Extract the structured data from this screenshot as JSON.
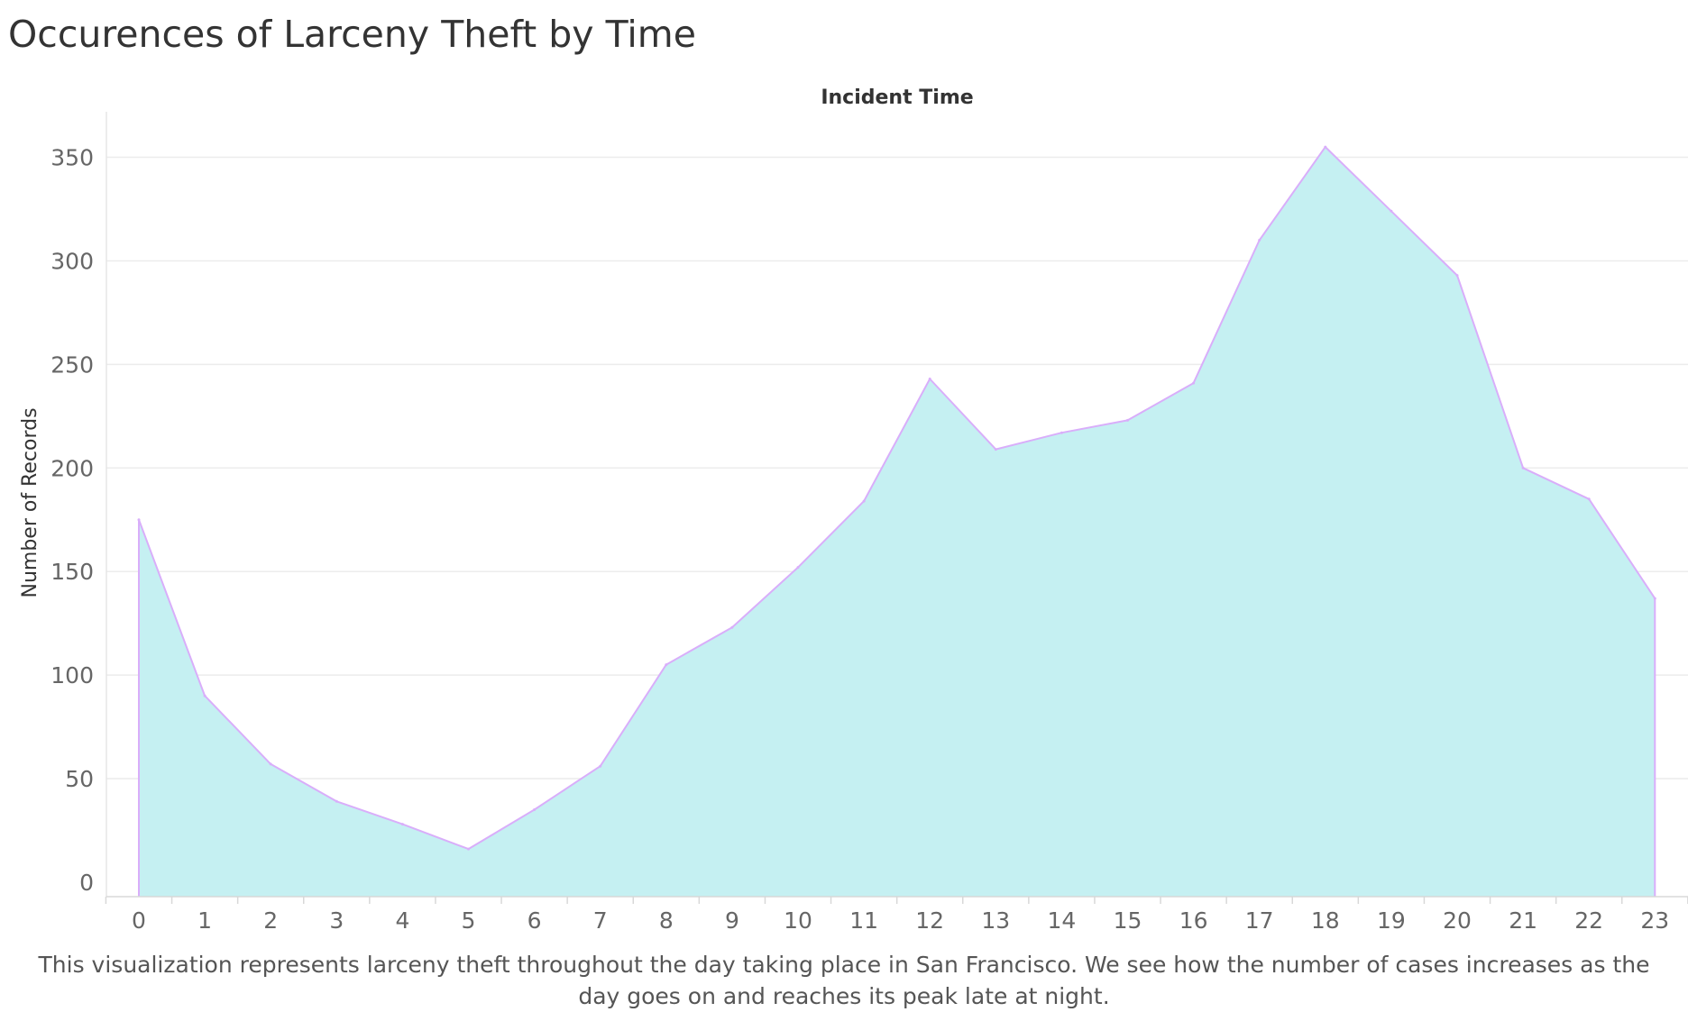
{
  "title": "Occurences of Larceny Theft by Time",
  "caption": "This visualization represents larceny theft throughout the day taking place in San Francisco. We see how the number of cases increases as the day goes on and reaches its peak late at night.",
  "colors": {
    "area_fill": "#c5f0f2",
    "line": "#d9aefa",
    "grid": "#ececec",
    "axis_text": "#666666",
    "title_text": "#333333"
  },
  "chart_data": {
    "type": "area",
    "x_header": "Incident Time",
    "ylabel": "Number of Records",
    "categories": [
      "0",
      "1",
      "2",
      "3",
      "4",
      "5",
      "6",
      "7",
      "8",
      "9",
      "10",
      "11",
      "12",
      "13",
      "14",
      "15",
      "16",
      "17",
      "18",
      "19",
      "20",
      "21",
      "22",
      "23"
    ],
    "series": [
      {
        "values": [
          175,
          90,
          57,
          39,
          28,
          16,
          35,
          56,
          105,
          123,
          152,
          184,
          243,
          209,
          217,
          223,
          241,
          310,
          355,
          324,
          293,
          200,
          185,
          137
        ]
      }
    ],
    "ylim": [
      -7,
      372
    ],
    "yticks": [
      0,
      50,
      100,
      150,
      200,
      250,
      300,
      350
    ],
    "grid": true,
    "legend": "none"
  }
}
